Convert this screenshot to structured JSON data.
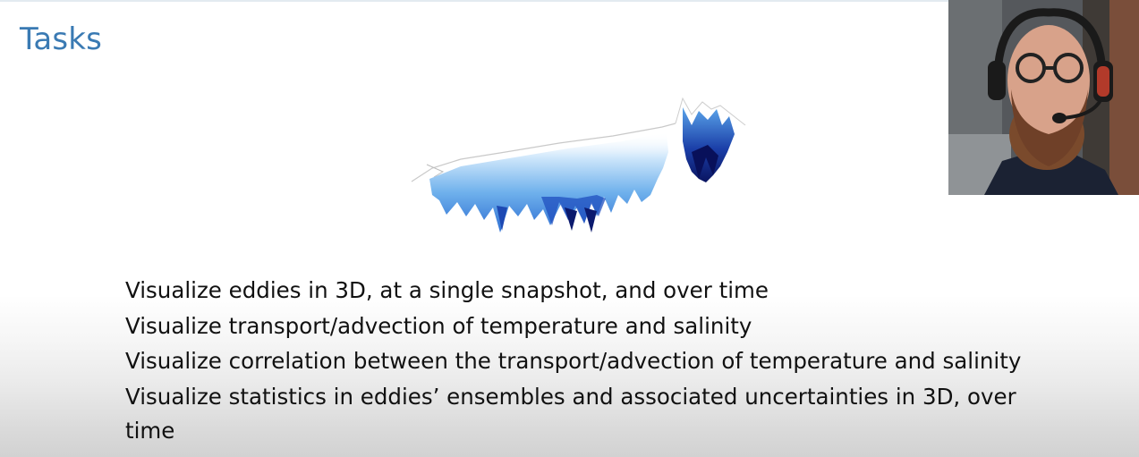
{
  "slide": {
    "title": "Tasks",
    "figure_icon": "ocean-eddies-3d-visualization",
    "webcam_icon": "presenter-webcam-feed"
  },
  "tasks": [
    {
      "text": "Visualize eddies in 3D, at a single snapshot, and over time"
    },
    {
      "text": "Visualize transport/advection of temperature and salinity"
    },
    {
      "text": "Visualize correlation between the transport/advection of temperature and salinity"
    },
    {
      "text": "Visualize statistics in eddies’ ensembles and associated uncertainties in 3D, over",
      "continuation": "time"
    }
  ],
  "colors": {
    "title": "#3a7ab3",
    "text": "#111111",
    "viz_deep": "#0b1a6e",
    "viz_light": "#9fd0f5"
  }
}
